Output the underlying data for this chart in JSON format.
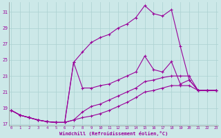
{
  "xlabel": "Windchill (Refroidissement éolien,°C)",
  "background_color": "#cce8e8",
  "grid_color": "#aad0d0",
  "line_color": "#990099",
  "xlim_min": -0.3,
  "xlim_max": 23.3,
  "ylim_min": 16.8,
  "ylim_max": 32.2,
  "xticks": [
    0,
    1,
    2,
    3,
    4,
    5,
    6,
    7,
    8,
    9,
    10,
    11,
    12,
    13,
    14,
    15,
    16,
    17,
    18,
    19,
    20,
    21,
    22,
    23
  ],
  "yticks": [
    17,
    19,
    21,
    23,
    25,
    27,
    29,
    31
  ],
  "series": [
    [
      18.7,
      18.1,
      17.8,
      17.5,
      17.3,
      17.2,
      17.2,
      24.7,
      26.0,
      27.2,
      27.8,
      28.2,
      29.0,
      29.5,
      30.3,
      31.8,
      30.8,
      30.5,
      31.3,
      26.7,
      22.5,
      21.2,
      21.2,
      21.2
    ],
    [
      18.7,
      18.1,
      17.8,
      17.5,
      17.3,
      17.2,
      17.2,
      24.7,
      21.5,
      21.5,
      21.8,
      22.0,
      22.5,
      23.0,
      23.5,
      25.5,
      23.8,
      23.5,
      24.8,
      22.0,
      22.5,
      21.2,
      21.2,
      21.2
    ],
    [
      18.7,
      18.1,
      17.8,
      17.5,
      17.3,
      17.2,
      17.2,
      17.5,
      18.5,
      19.2,
      19.5,
      20.0,
      20.5,
      21.0,
      21.5,
      22.3,
      22.5,
      22.8,
      23.0,
      23.0,
      23.0,
      21.2,
      21.2,
      21.2
    ],
    [
      18.7,
      18.1,
      17.8,
      17.5,
      17.3,
      17.2,
      17.2,
      17.5,
      17.8,
      18.0,
      18.3,
      18.7,
      19.2,
      19.7,
      20.3,
      21.0,
      21.2,
      21.5,
      21.8,
      21.8,
      21.8,
      21.2,
      21.2,
      21.2
    ]
  ]
}
